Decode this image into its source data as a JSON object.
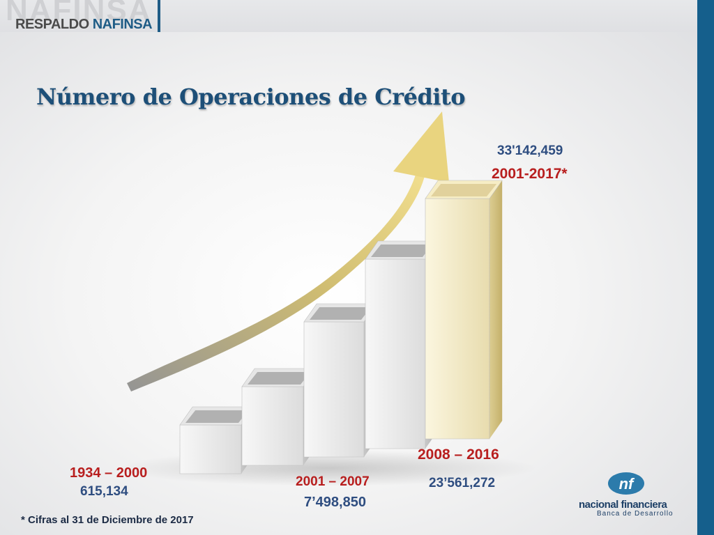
{
  "header": {
    "brand_big": "NAFINSA",
    "brand_small_1": "RESPALDO",
    "brand_small_2": "NAFINSA"
  },
  "title": "Número de Operaciones de Crédito",
  "chart_data": {
    "type": "bar",
    "title": "Número de Operaciones de Crédito",
    "categories": [
      "1934 – 2000",
      "2001 – 2007",
      "2008 – 2016",
      "2001-2017*"
    ],
    "value_labels": [
      "615,134",
      "7’498,850",
      "23’561,272",
      "33'142,459"
    ],
    "values": [
      615134,
      7498850,
      23561272,
      33142459
    ],
    "xlabel": "",
    "ylabel": "",
    "grid": false,
    "legend": "none"
  },
  "footnote": "* Cifras al 31 de Diciembre de 2017",
  "logo": {
    "name": "nacional financiera",
    "subtitle": "Banca de Desarrollo"
  },
  "colors": {
    "title": "#1d4f78",
    "period_labels": "#b81e1e",
    "value_labels": "#2e4d80",
    "accent": "#155f8c",
    "last_bar": "#efe6c0"
  }
}
